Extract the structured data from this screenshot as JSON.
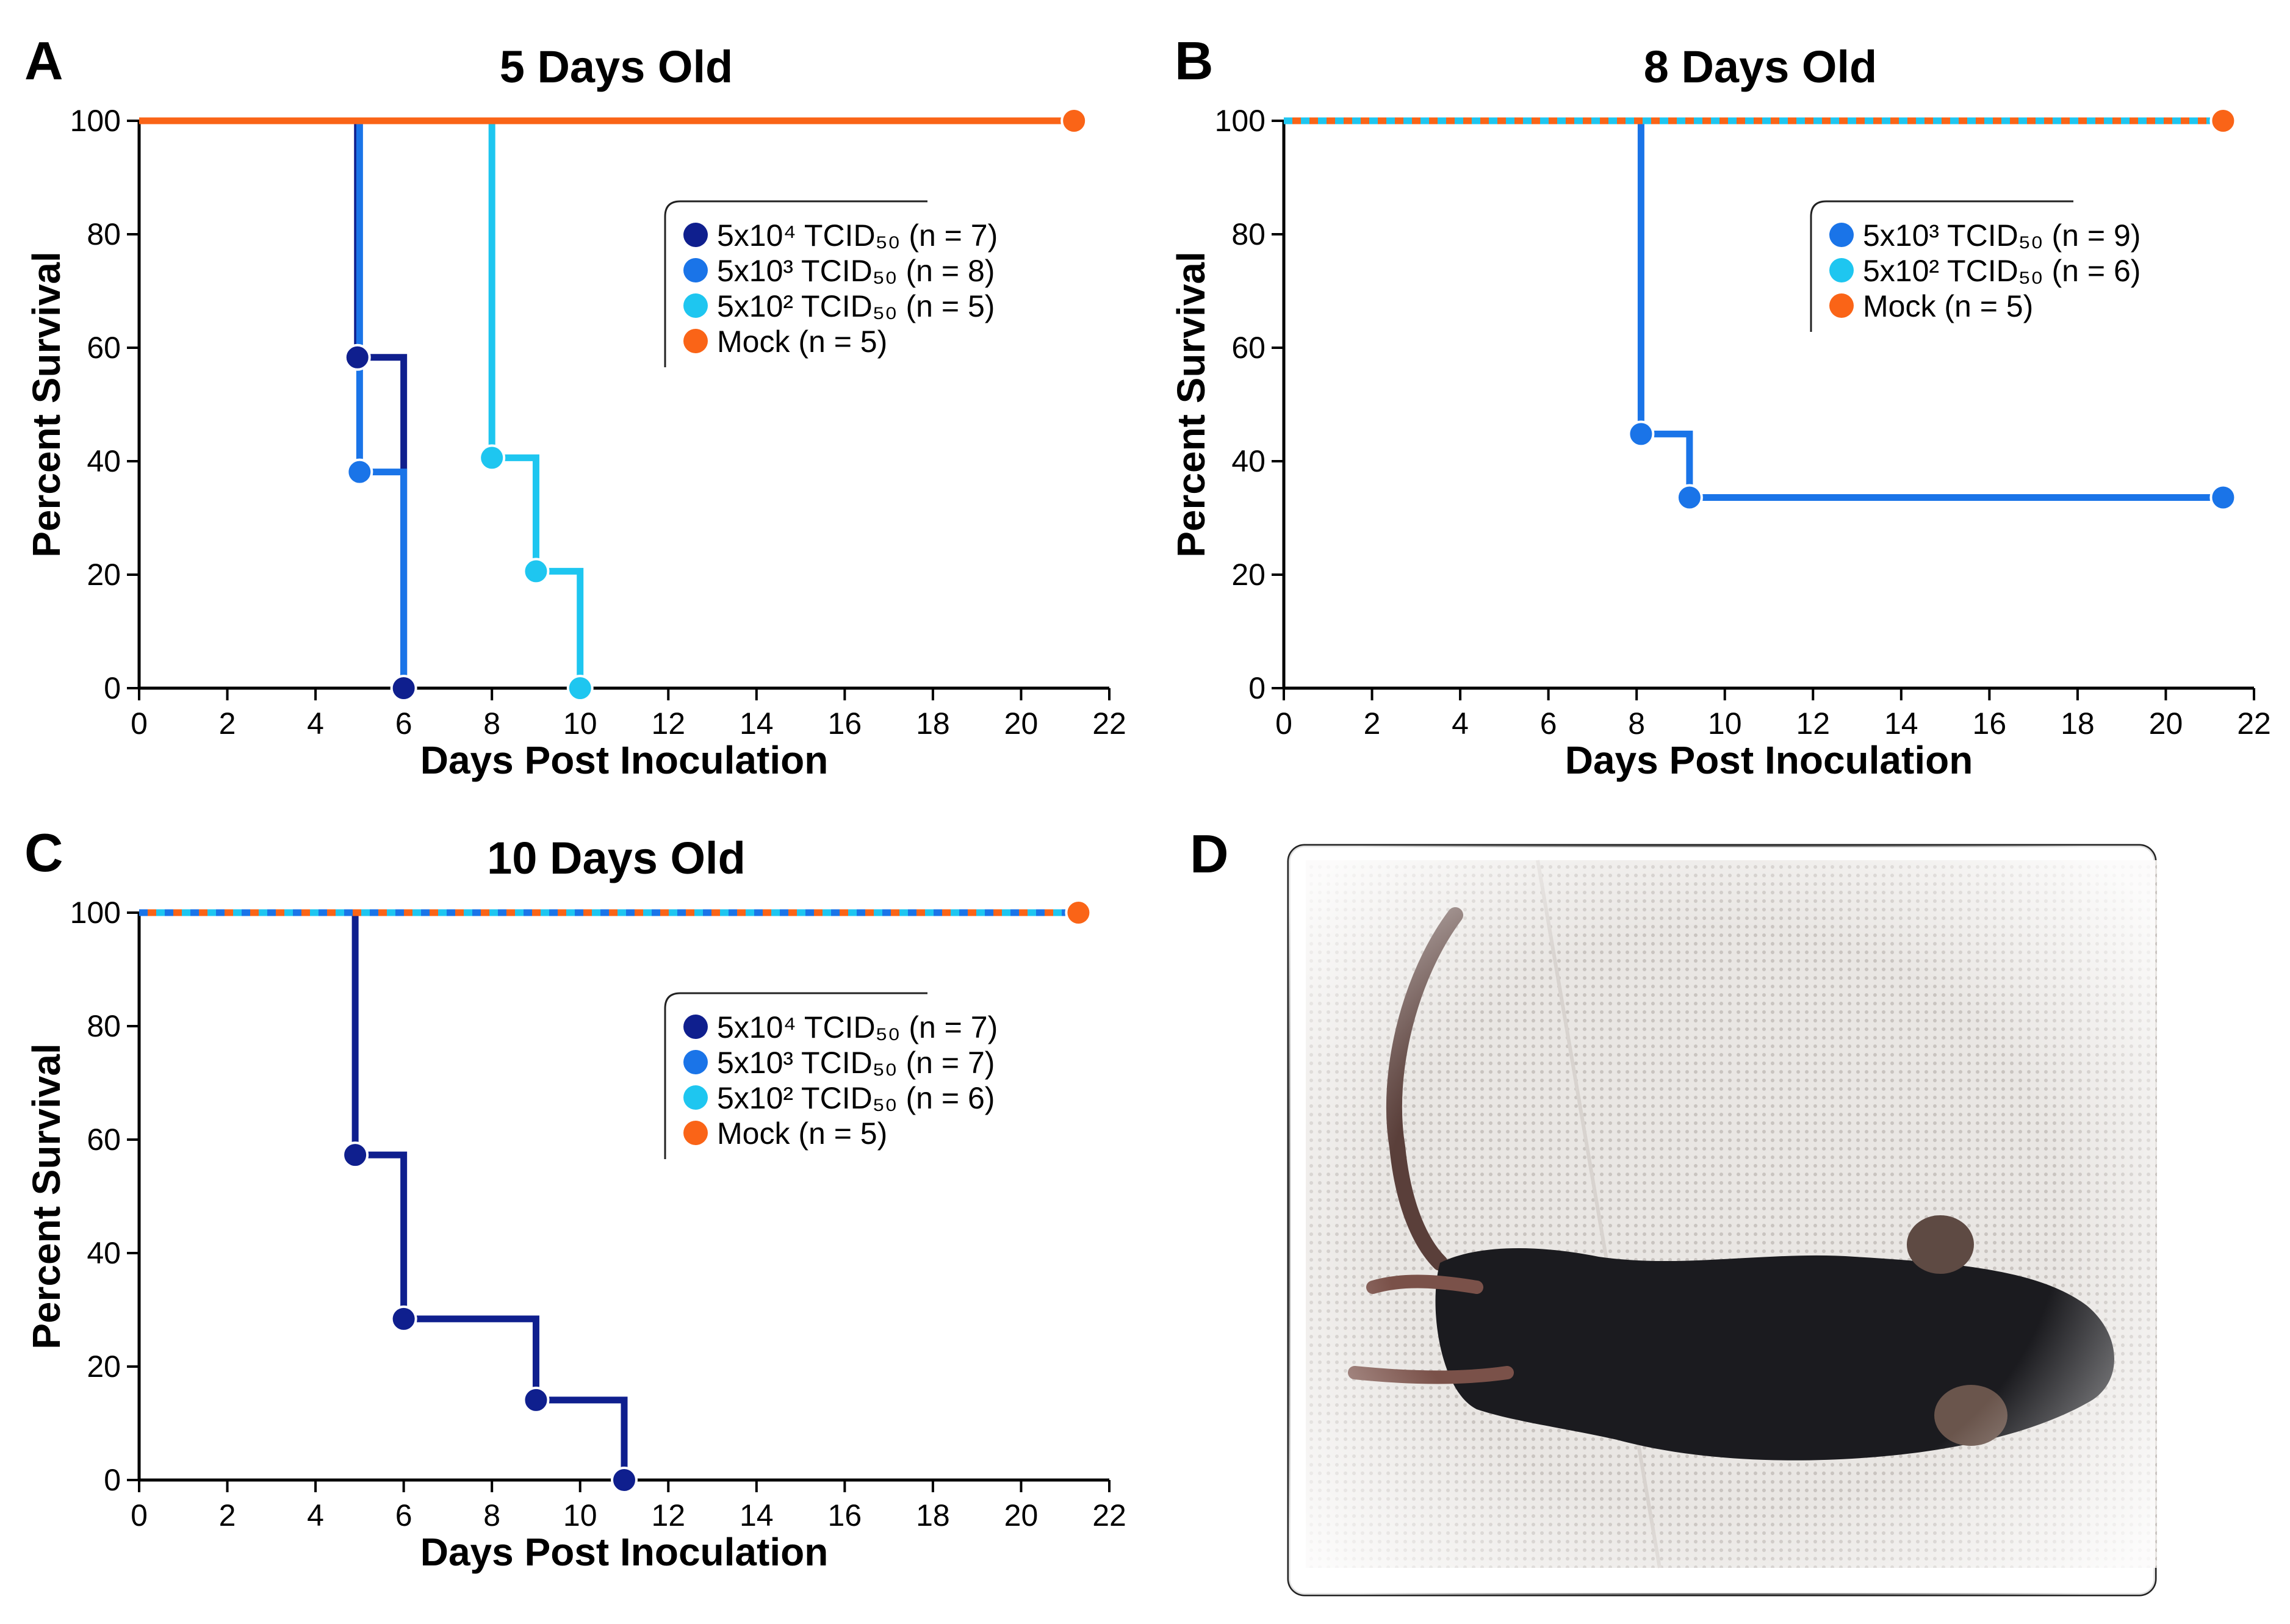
{
  "colors": {
    "dark_navy": "#0f1f8e",
    "medium_blue": "#1a74e8",
    "light_cyan": "#1ec6f0",
    "mock_orange": "#fa6417"
  },
  "figure_d": {
    "letter": "D",
    "image": "photograph of a black mouse lying on its side on a white perforated pad"
  },
  "chart_data": [
    {
      "panel": "A",
      "type": "line",
      "step": "post",
      "title": "5 Days Old",
      "xlabel": "Days Post Inoculation",
      "ylabel": "Percent Survival",
      "xlim": [
        0,
        22
      ],
      "ylim": [
        0,
        100
      ],
      "xticks": [
        "0",
        "2",
        "4",
        "6",
        "8",
        "10",
        "12",
        "14",
        "16",
        "18",
        "20",
        "22"
      ],
      "yticks": [
        "0",
        "20",
        "40",
        "60",
        "80",
        "100"
      ],
      "legend_position": "center-right",
      "series": [
        {
          "name": "5x10⁴ TCID₅₀ (n = 7)",
          "color_key": "dark_navy",
          "x": [
            0,
            4.95,
            6,
            6.05
          ],
          "y": [
            100,
            58.3,
            0,
            0
          ],
          "markers": [
            [
              4.95,
              58.3
            ],
            [
              6,
              0
            ]
          ]
        },
        {
          "name": "5x10³ TCID₅₀ (n = 8)",
          "color_key": "medium_blue",
          "x": [
            0,
            5,
            6
          ],
          "y": [
            100,
            38.1,
            0
          ],
          "markers": [
            [
              5,
              38.1
            ]
          ]
        },
        {
          "name": "5x10² TCID₅₀ (n = 5)",
          "color_key": "light_cyan",
          "x": [
            0,
            8,
            9,
            10
          ],
          "y": [
            100,
            40.6,
            20.6,
            0
          ],
          "markers": [
            [
              8,
              40.6
            ],
            [
              9,
              20.6
            ],
            [
              10,
              0
            ]
          ]
        },
        {
          "name": "Mock (n = 5)",
          "color_key": "mock_orange",
          "x": [
            0,
            21.2
          ],
          "y": [
            100,
            100
          ],
          "markers": [
            [
              21.2,
              100
            ]
          ]
        }
      ]
    },
    {
      "panel": "B",
      "type": "line",
      "step": "post",
      "title": "8 Days Old",
      "xlabel": "Days Post Inoculation",
      "ylabel": "Percent Survival",
      "xlim": [
        0,
        22
      ],
      "ylim": [
        0,
        100
      ],
      "xticks": [
        "0",
        "2",
        "4",
        "6",
        "8",
        "10",
        "12",
        "14",
        "16",
        "18",
        "20",
        "22"
      ],
      "yticks": [
        "0",
        "20",
        "40",
        "60",
        "80",
        "100"
      ],
      "legend_position": "center-right",
      "series": [
        {
          "name": "5x10³ TCID₅₀ (n = 9)",
          "color_key": "medium_blue",
          "x": [
            0,
            8.1,
            9.2,
            21.3
          ],
          "y": [
            100,
            44.8,
            33.6,
            33.6
          ],
          "markers": [
            [
              8.1,
              44.8
            ],
            [
              9.2,
              33.6
            ],
            [
              21.3,
              33.6
            ]
          ]
        },
        {
          "name": "5x10² TCID₅₀ (n = 6)",
          "color_key": "light_cyan",
          "x": [
            0,
            21.3
          ],
          "y": [
            100,
            100
          ],
          "markers": []
        },
        {
          "name": "Mock (n = 5)",
          "color_key": "mock_orange",
          "x": [
            0,
            21.3
          ],
          "y": [
            100,
            100
          ],
          "markers": [
            [
              21.3,
              100
            ]
          ]
        }
      ]
    },
    {
      "panel": "C",
      "type": "line",
      "step": "post",
      "title": "10 Days Old",
      "xlabel": "Days Post Inoculation",
      "ylabel": "Percent Survival",
      "xlim": [
        0,
        22
      ],
      "ylim": [
        0,
        100
      ],
      "xticks": [
        "0",
        "2",
        "4",
        "6",
        "8",
        "10",
        "12",
        "14",
        "16",
        "18",
        "20",
        "22"
      ],
      "yticks": [
        "0",
        "20",
        "40",
        "60",
        "80",
        "100"
      ],
      "legend_position": "center-right",
      "series": [
        {
          "name": "5x10⁴ TCID₅₀ (n = 7)",
          "color_key": "dark_navy",
          "x": [
            0,
            4.9,
            6,
            9,
            11
          ],
          "y": [
            100,
            57.3,
            28.4,
            14.1,
            0
          ],
          "markers": [
            [
              4.9,
              57.3
            ],
            [
              6,
              28.4
            ],
            [
              9,
              14.1
            ],
            [
              11,
              0
            ]
          ]
        },
        {
          "name": "5x10³ TCID₅₀ (n = 7)",
          "color_key": "medium_blue",
          "x": [
            0,
            21.3
          ],
          "y": [
            100,
            100
          ],
          "markers": []
        },
        {
          "name": "5x10² TCID₅₀ (n = 6)",
          "color_key": "light_cyan",
          "x": [
            0,
            21.3
          ],
          "y": [
            100,
            100
          ],
          "markers": []
        },
        {
          "name": "Mock (n = 5)",
          "color_key": "mock_orange",
          "x": [
            0,
            21.3
          ],
          "y": [
            100,
            100
          ],
          "markers": [
            [
              21.3,
              100
            ]
          ]
        }
      ]
    }
  ]
}
